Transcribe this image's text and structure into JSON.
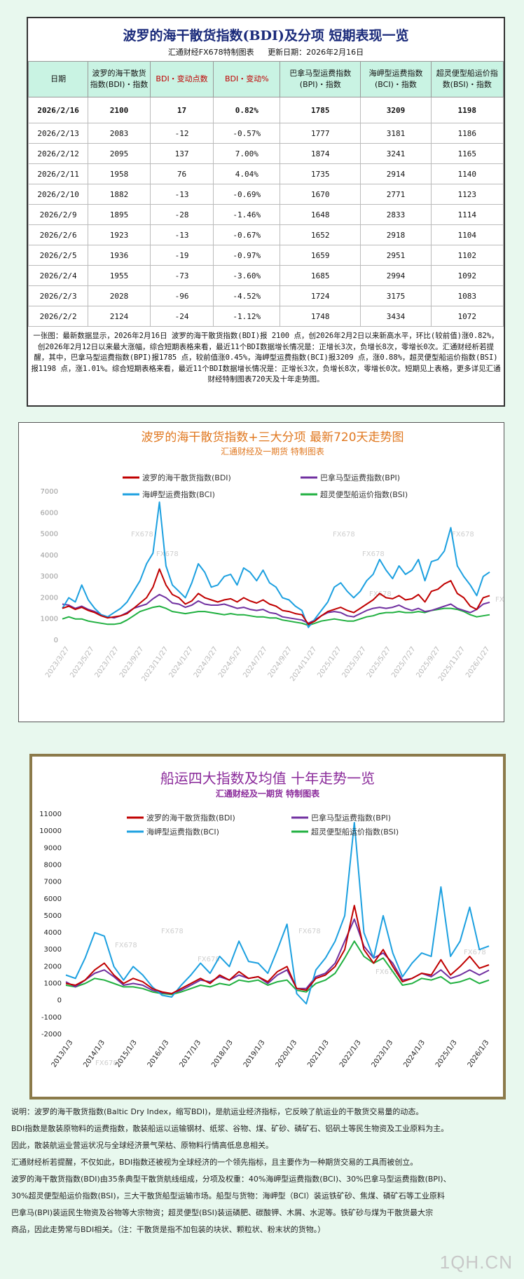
{
  "table_section": {
    "title": "波罗的海干散货指数(BDI)及分项 短期表现一览",
    "subtitle_left": "汇通财经FX678特制图表",
    "subtitle_right": "更新日期：2026年2月16日",
    "headers": [
      "日期",
      "波罗的海干散货指数(BDI)・指数",
      "BDI・变动点数",
      "BDI・变动%",
      "巴拿马型运费指数(BPI)・指数",
      "海岬型运费指数(BCI)・指数",
      "超灵便型船运价指数(BSI)・指数"
    ],
    "rows": [
      [
        "2026/2/16",
        "2100",
        "17",
        "0.82%",
        "1785",
        "3209",
        "1198"
      ],
      [
        "2026/2/13",
        "2083",
        "-12",
        "-0.57%",
        "1777",
        "3181",
        "1186"
      ],
      [
        "2026/2/12",
        "2095",
        "137",
        "7.00%",
        "1874",
        "3241",
        "1165"
      ],
      [
        "2026/2/11",
        "1958",
        "76",
        "4.04%",
        "1735",
        "2914",
        "1140"
      ],
      [
        "2026/2/10",
        "1882",
        "-13",
        "-0.69%",
        "1670",
        "2771",
        "1123"
      ],
      [
        "2026/2/9",
        "1895",
        "-28",
        "-1.46%",
        "1648",
        "2833",
        "1114"
      ],
      [
        "2026/2/6",
        "1923",
        "-13",
        "-0.67%",
        "1652",
        "2918",
        "1104"
      ],
      [
        "2026/2/5",
        "1936",
        "-19",
        "-0.97%",
        "1659",
        "2951",
        "1102"
      ],
      [
        "2026/2/4",
        "1955",
        "-73",
        "-3.60%",
        "1685",
        "2994",
        "1092"
      ],
      [
        "2026/2/3",
        "2028",
        "-96",
        "-4.52%",
        "1724",
        "3175",
        "1083"
      ],
      [
        "2026/2/2",
        "2124",
        "-24",
        "-1.12%",
        "1748",
        "3434",
        "1072"
      ]
    ],
    "summary": "一张图：最新数据显示，2026年2月16日 波罗的海干散货指数(BDI)报 2100 点，创2026年2月2日以来新高水平，环比(较前值)涨0.82%，创2026年2月12日以来最大涨幅，综合短期表格来看，最近11个BDI数据增长情况是：正增长3次，负增长8次，零增长0次。汇通财经析若提醒，其中，巴拿马型运费指数(BPI)报1785 点，较前值涨0.45%，海岬型运费指数(BCI)报3209 点，涨0.88%，超灵便型船运价指数(BSI)报1198 点，涨1.01%。综合短期表格来看，最近11个BDI数据增长情况是：正增长3次，负增长8次，零增长0次。短期见上表格，更多详见汇通财经特制图表720天及十年走势图。"
  },
  "chart_data": [
    {
      "type": "line",
      "title": "波罗的海干散货指数+三大分项 最新720天走势图",
      "subtitle": "汇通财经及一期货 特制图表",
      "legend": [
        "波罗的海干散货指数(BDI)",
        "巴拿马型运费指数(BPI)",
        "海岬型运费指数(BCI)",
        "超灵便型船运价指数(BSI)"
      ],
      "ylim": [
        0,
        7000
      ],
      "yticks": [
        0,
        1000,
        2000,
        3000,
        4000,
        5000,
        6000,
        7000
      ],
      "xticks": [
        "2023/3/27",
        "2023/5/27",
        "2023/7/27",
        "2023/9/27",
        "2023/11/27",
        "2024/1/27",
        "2024/3/27",
        "2024/5/27",
        "2024/7/27",
        "2024/9/27",
        "2024/11/27",
        "2025/1/27",
        "2025/3/27",
        "2025/5/27",
        "2025/7/27",
        "2025/9/27",
        "2025/11/27",
        "2026/1/27"
      ],
      "watermark": "FX678",
      "series": [
        {
          "name": "波罗的海干散货指数(BDI)",
          "color": "#c00000",
          "values": [
            1500,
            1600,
            1450,
            1550,
            1400,
            1300,
            1150,
            1050,
            1100,
            1150,
            1250,
            1500,
            1750,
            2000,
            2500,
            3350,
            2600,
            2150,
            2000,
            1700,
            1850,
            2200,
            2000,
            1900,
            1800,
            1900,
            1950,
            1800,
            2000,
            1850,
            1750,
            1900,
            1700,
            1600,
            1400,
            1350,
            1250,
            1200,
            750,
            900,
            1150,
            1350,
            1450,
            1550,
            1400,
            1300,
            1500,
            1700,
            1900,
            2200,
            2000,
            1950,
            2100,
            1900,
            1950,
            2150,
            1800,
            2300,
            2400,
            2650,
            2800,
            2200,
            2000,
            1600,
            1450,
            2000,
            2100
          ]
        },
        {
          "name": "巴拿马型运费指数(BPI)",
          "color": "#7030a0",
          "values": [
            1700,
            1650,
            1500,
            1600,
            1450,
            1350,
            1200,
            1100,
            1050,
            1150,
            1300,
            1500,
            1600,
            1700,
            1950,
            2150,
            2000,
            1750,
            1700,
            1550,
            1650,
            1850,
            1700,
            1650,
            1650,
            1700,
            1600,
            1500,
            1550,
            1450,
            1400,
            1450,
            1300,
            1250,
            1100,
            1050,
            1000,
            950,
            800,
            950,
            1150,
            1300,
            1350,
            1300,
            1150,
            1100,
            1250,
            1400,
            1500,
            1550,
            1500,
            1550,
            1650,
            1500,
            1400,
            1500,
            1350,
            1400,
            1500,
            1600,
            1700,
            1500,
            1400,
            1300,
            1450,
            1700,
            1785
          ]
        },
        {
          "name": "海岬型运费指数(BCI)",
          "color": "#1ca0e0",
          "values": [
            1500,
            2000,
            1800,
            2600,
            1900,
            1500,
            1200,
            1100,
            1300,
            1500,
            1800,
            2300,
            2800,
            3600,
            4100,
            6500,
            3500,
            2600,
            2300,
            2000,
            2700,
            3600,
            3200,
            2500,
            2600,
            3000,
            3100,
            2600,
            3400,
            3200,
            2800,
            3300,
            2700,
            2500,
            2000,
            1900,
            1600,
            1400,
            600,
            1000,
            1400,
            1800,
            2500,
            2700,
            2300,
            2000,
            2300,
            2800,
            3100,
            3800,
            3300,
            2900,
            3500,
            3100,
            3300,
            3800,
            2800,
            3700,
            3800,
            4200,
            5300,
            3500,
            3000,
            2600,
            2100,
            3000,
            3209
          ]
        },
        {
          "name": "超灵便型船运价指数(BSI)",
          "color": "#20b040",
          "values": [
            1000,
            1100,
            1000,
            1000,
            900,
            850,
            800,
            750,
            750,
            800,
            950,
            1150,
            1350,
            1450,
            1550,
            1600,
            1500,
            1350,
            1300,
            1250,
            1300,
            1350,
            1350,
            1300,
            1250,
            1200,
            1250,
            1200,
            1200,
            1150,
            1100,
            1100,
            1050,
            1050,
            950,
            900,
            850,
            800,
            700,
            800,
            900,
            950,
            1000,
            950,
            900,
            900,
            1000,
            1100,
            1150,
            1250,
            1300,
            1300,
            1350,
            1300,
            1300,
            1350,
            1300,
            1400,
            1450,
            1500,
            1500,
            1450,
            1350,
            1200,
            1100,
            1150,
            1198
          ]
        }
      ]
    },
    {
      "type": "line",
      "title": "船运四大指数及均值 十年走势一览",
      "subtitle": "汇通财经及一期货 特制图表",
      "legend": [
        "波罗的海干散货指数(BDI)",
        "巴拿马型运费指数(BPI)",
        "海岬型运费指数(BCI)",
        "超灵便型船运价指数(BSI)"
      ],
      "ylim": [
        -2000,
        11000
      ],
      "yticks": [
        -2000,
        -1000,
        0,
        1000,
        2000,
        3000,
        4000,
        5000,
        6000,
        7000,
        8000,
        9000,
        10000,
        11000
      ],
      "xticks": [
        "2013/1/3",
        "2014/1/3",
        "2015/1/3",
        "2016/1/3",
        "2017/1/3",
        "2018/1/3",
        "2019/1/3",
        "2020/1/3",
        "2021/1/3",
        "2022/1/3",
        "2023/1/3",
        "2024/1/3",
        "2025/1/3",
        "2026/1/3"
      ],
      "watermark": "FX678",
      "series": [
        {
          "name": "波罗的海干散货指数(BDI)",
          "color": "#c00000",
          "values": [
            1000,
            900,
            1200,
            1800,
            2200,
            1500,
            1000,
            1300,
            1100,
            700,
            500,
            400,
            700,
            1000,
            1300,
            1000,
            1500,
            1200,
            1700,
            1300,
            1400,
            1100,
            1700,
            2000,
            700,
            600,
            1300,
            1500,
            2000,
            3000,
            5600,
            3000,
            2200,
            3000,
            2000,
            1100,
            1300,
            1600,
            1500,
            2400,
            1500,
            2000,
            2600,
            1900,
            2100
          ]
        },
        {
          "name": "巴拿马型运费指数(BPI)",
          "color": "#7030a0",
          "values": [
            1100,
            800,
            1200,
            1600,
            1800,
            1400,
            900,
            1000,
            900,
            600,
            450,
            400,
            600,
            900,
            1200,
            1100,
            1400,
            1200,
            1500,
            1300,
            1400,
            1000,
            1500,
            1800,
            700,
            700,
            1400,
            1600,
            2200,
            3500,
            4800,
            3200,
            2500,
            2800,
            2200,
            1200,
            1300,
            1600,
            1400,
            1800,
            1300,
            1500,
            1800,
            1500,
            1785
          ]
        },
        {
          "name": "海岬型运费指数(BCI)",
          "color": "#1ca0e0",
          "values": [
            1500,
            1300,
            2500,
            4000,
            3800,
            2000,
            1200,
            2000,
            1500,
            800,
            300,
            200,
            900,
            1500,
            2200,
            1600,
            2600,
            2000,
            3500,
            2300,
            2200,
            1600,
            3000,
            4500,
            400,
            -200,
            1800,
            2500,
            3500,
            5000,
            10500,
            4000,
            2500,
            5000,
            2800,
            1400,
            2200,
            2800,
            2600,
            6700,
            2600,
            3500,
            5500,
            3000,
            3209
          ]
        },
        {
          "name": "超灵便型船运价指数(BSI)",
          "color": "#20b040",
          "values": [
            900,
            800,
            1000,
            1300,
            1200,
            1000,
            800,
            800,
            700,
            500,
            400,
            350,
            500,
            700,
            900,
            800,
            1000,
            900,
            1200,
            1100,
            1200,
            900,
            1100,
            1200,
            600,
            500,
            1000,
            1200,
            1600,
            2500,
            3500,
            2600,
            2200,
            2500,
            1700,
            900,
            1000,
            1300,
            1200,
            1400,
            1000,
            1100,
            1300,
            1000,
            1198
          ]
        }
      ]
    }
  ],
  "footer": {
    "lines": [
      "说明：波罗的海干散货指数(Baltic Dry Index，缩写BDI)，是航运业经济指标，它反映了航运业的干散货交易量的动态。",
      "BDI指数是散装原物料的运费指数，散装船运以运输钢材、纸浆、谷物、煤、矿砂、磷矿石、铝矾土等民生物资及工业原料为主。",
      "因此，散装航运业营运状况与全球经济景气荣枯、原物料行情高低息息相关。",
      "汇通财经析若提醒，不仅如此，BDI指数还被视为全球经济的一个领先指标，且主要作为一种期货交易的工具而被创立。",
      "波罗的海干散货指数(BDI)由35条典型干散货航线组成，分项及权重：40%海岬型运费指数(BCI)、30%巴拿马型运费指数(BPI)、",
      "30%超灵便型船运价指数(BSI)，三大干散货船型运输市场。船型与货物：海岬型（BCI）装运铁矿砂、焦煤、磷矿石等工业原料",
      "巴拿马(BPI)装运民生物资及谷物等大宗物资；超灵便型(BSI)装运磷肥、碳酸钾、木屑、水泥等。铁矿砂与煤为干散货最大宗",
      "商品，因此走势常与BDI相关。（注：干散货是指不加包装的块状、颗粒状、粉末状的货物。）"
    ],
    "site_mark": "1QH.CN"
  }
}
